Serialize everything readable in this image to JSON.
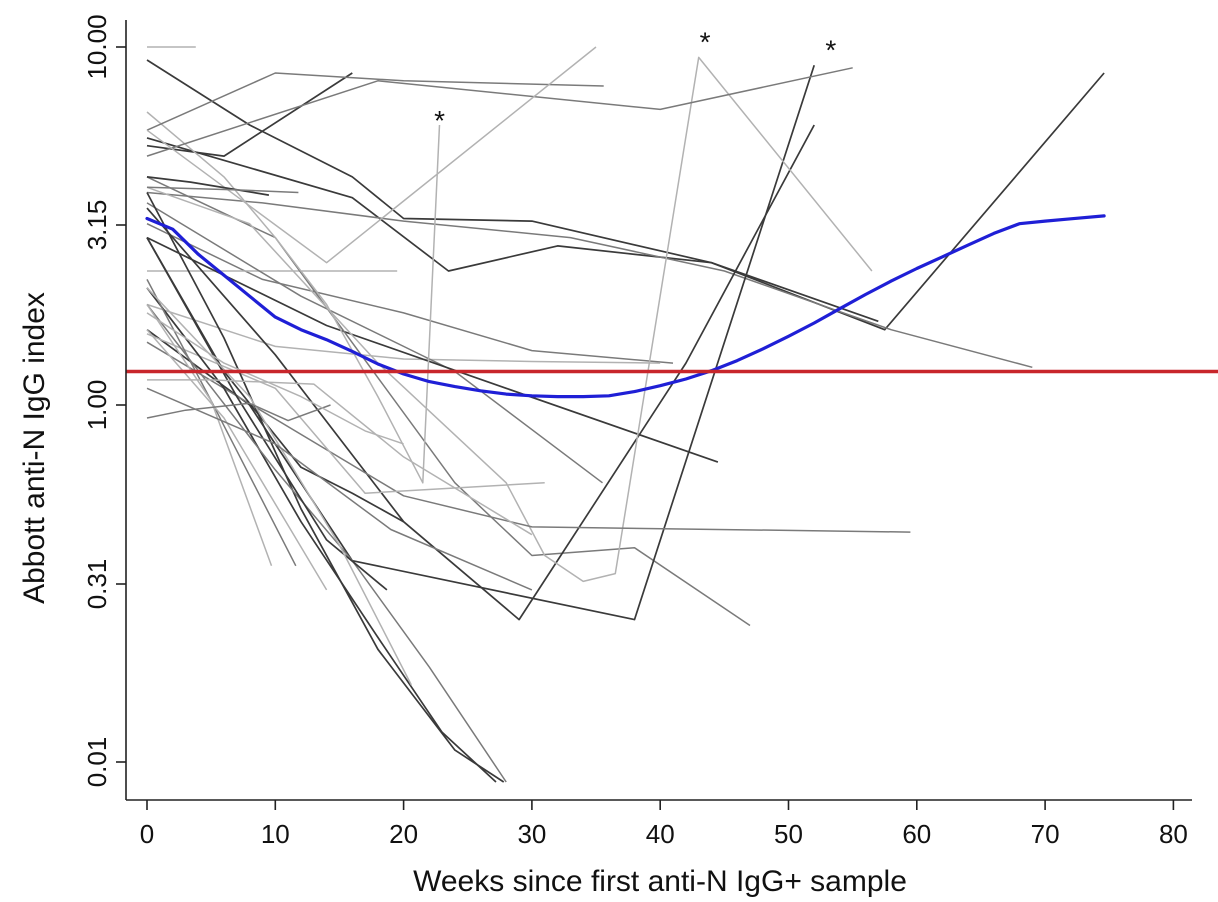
{
  "chart_data": {
    "type": "line",
    "xlabel": "Weeks since first anti-N IgG+ sample",
    "ylabel": "Abbott anti-N IgG index",
    "xlim": [
      -1.5,
      82
    ],
    "y_scale": "log-like (tick positions unevenly spaced)",
    "x_ticks": [
      0,
      10,
      20,
      30,
      40,
      50,
      60,
      70,
      80
    ],
    "x_tick_labels": [
      "0",
      "10",
      "20",
      "30",
      "40",
      "50",
      "60",
      "70",
      "80"
    ],
    "y_ticks": [
      0.01,
      0.31,
      1.0,
      3.15,
      10.0
    ],
    "y_tick_labels": [
      "0.01",
      "0.31",
      "1.00",
      "3.15",
      "10.00"
    ],
    "y_ticks_fraction": [
      0.01,
      0.31,
      1.0,
      3.15,
      10.0
    ],
    "grid": false,
    "legend": "none",
    "colors": {
      "individual_dark": "#3a3a3a",
      "individual_mid": "#7a7a7a",
      "individual_light": "#b2b2b2",
      "smooth_fit": "#1f1fd6",
      "threshold": "#c8262b",
      "axis": "#222222"
    },
    "threshold": {
      "y": 1.4
    },
    "annotations": [
      {
        "text": "*",
        "x": 22.8,
        "y": 7.5
      },
      {
        "text": "*",
        "x": 43.5,
        "y": 11.0
      },
      {
        "text": "*",
        "x": 53.3,
        "y": 10.4
      }
    ],
    "smooth_curve": {
      "x": [
        0,
        2,
        4,
        6,
        8,
        10,
        12,
        14,
        16,
        18,
        20,
        22,
        24,
        26,
        28,
        30,
        32,
        34,
        36,
        38,
        40,
        42,
        44,
        46,
        48,
        50,
        52,
        54,
        56,
        58,
        60,
        62,
        64,
        66,
        68,
        70,
        72,
        74.6
      ],
      "y": [
        3.4,
        3.1,
        2.8,
        2.55,
        2.3,
        2.05,
        1.9,
        1.78,
        1.64,
        1.49,
        1.37,
        1.28,
        1.22,
        1.17,
        1.13,
        1.11,
        1.1,
        1.1,
        1.11,
        1.16,
        1.23,
        1.31,
        1.41,
        1.53,
        1.67,
        1.82,
        1.98,
        2.15,
        2.32,
        2.48,
        2.63,
        2.77,
        2.91,
        3.05,
        3.2,
        3.3,
        3.39,
        3.5
      ]
    },
    "series": [
      {
        "tone": "dark",
        "x": [
          0,
          16,
          23.5,
          32,
          44,
          57.5,
          74.6
        ],
        "y": [
          6.5,
          4.2,
          2.6,
          2.9,
          2.7,
          1.9,
          9.0
        ]
      },
      {
        "tone": "dark",
        "x": [
          0,
          8,
          16,
          20,
          30,
          44,
          57
        ],
        "y": [
          9.5,
          7.0,
          5.0,
          3.4,
          3.3,
          2.7,
          2.0
        ]
      },
      {
        "tone": "dark",
        "x": [
          0,
          6,
          16
        ],
        "y": [
          6.2,
          5.8,
          9.0
        ]
      },
      {
        "tone": "mid",
        "x": [
          0,
          9,
          20,
          30,
          41
        ],
        "y": [
          3.2,
          2.5,
          2.1,
          1.65,
          1.5
        ]
      },
      {
        "tone": "mid",
        "x": [
          0,
          9,
          20,
          33,
          45,
          58,
          69
        ],
        "y": [
          4.4,
          4.0,
          3.3,
          3.0,
          2.6,
          1.9,
          1.45
        ]
      },
      {
        "tone": "light",
        "x": [
          0,
          10,
          20,
          30,
          40
        ],
        "y": [
          2.2,
          1.7,
          1.55,
          1.52,
          1.5
        ]
      },
      {
        "tone": "light",
        "x": [
          0,
          10,
          19.5
        ],
        "y": [
          2.6,
          2.6,
          2.6
        ]
      },
      {
        "tone": "mid",
        "x": [
          0,
          12,
          24,
          35.5
        ],
        "y": [
          4.0,
          2.3,
          1.4,
          0.7
        ]
      },
      {
        "tone": "dark",
        "x": [
          0,
          14,
          28,
          44.5
        ],
        "y": [
          3.0,
          1.95,
          1.2,
          0.78
        ]
      },
      {
        "tone": "mid",
        "x": [
          0,
          10,
          24,
          30,
          38,
          47
        ],
        "y": [
          5.0,
          3.0,
          0.7,
          0.42,
          0.45,
          0.24
        ]
      },
      {
        "tone": "dark",
        "x": [
          0,
          10,
          20,
          29,
          42,
          52
        ],
        "y": [
          3.8,
          1.6,
          0.55,
          0.25,
          1.5,
          7.0
        ]
      },
      {
        "tone": "dark",
        "x": [
          0,
          8,
          16,
          38,
          52
        ],
        "y": [
          1.9,
          1.0,
          0.4,
          0.25,
          9.3
        ]
      },
      {
        "tone": "light",
        "x": [
          0,
          6,
          10,
          14,
          18,
          21.5,
          22.8
        ],
        "y": [
          7.5,
          5.0,
          3.0,
          2.2,
          1.1,
          0.7,
          7.0
        ]
      },
      {
        "tone": "light",
        "x": [
          0,
          8,
          18,
          28,
          31,
          34,
          36.5,
          43,
          56.5
        ],
        "y": [
          4.6,
          3.2,
          1.5,
          0.7,
          0.42,
          0.32,
          0.35,
          9.6,
          2.6
        ]
      },
      {
        "tone": "mid",
        "x": [
          0,
          10,
          20,
          35.6
        ],
        "y": [
          6.8,
          9.0,
          8.7,
          8.5
        ]
      },
      {
        "tone": "mid",
        "x": [
          0,
          18,
          40,
          55
        ],
        "y": [
          5.8,
          8.7,
          7.6,
          9.2
        ]
      },
      {
        "tone": "light",
        "x": [
          0,
          3.8
        ],
        "y": [
          10.0,
          10.0
        ]
      },
      {
        "tone": "light",
        "x": [
          0,
          14,
          35
        ],
        "y": [
          6.8,
          2.7,
          10.0
        ]
      },
      {
        "tone": "mid",
        "x": [
          0,
          20,
          30,
          59.5
        ],
        "y": [
          1.75,
          0.65,
          0.53,
          0.51
        ]
      },
      {
        "tone": "light",
        "x": [
          0,
          10,
          17,
          31
        ],
        "y": [
          1.85,
          1.2,
          0.66,
          0.7
        ]
      },
      {
        "tone": "dark",
        "x": [
          0,
          6,
          12,
          16,
          20
        ],
        "y": [
          3.0,
          1.4,
          0.76,
          0.66,
          0.55
        ]
      },
      {
        "tone": "dark",
        "x": [
          0,
          3.4,
          9.5
        ],
        "y": [
          5.0,
          4.8,
          4.3
        ]
      },
      {
        "tone": "dark",
        "x": [
          0,
          6,
          12,
          18,
          24,
          27.8
        ],
        "y": [
          4.4,
          1.8,
          0.6,
          0.2,
          0.03,
          0.005
        ]
      },
      {
        "tone": "dark",
        "x": [
          0,
          6,
          12,
          18,
          23,
          27.2
        ],
        "y": [
          2.4,
          1.2,
          0.55,
          0.22,
          0.06,
          0.005
        ]
      },
      {
        "tone": "mid",
        "x": [
          0,
          10,
          16,
          22,
          28
        ],
        "y": [
          2.2,
          0.75,
          0.4,
          0.17,
          0.005
        ]
      },
      {
        "tone": "mid",
        "x": [
          0,
          5,
          11.6
        ],
        "y": [
          2.5,
          1.05,
          0.38
        ]
      },
      {
        "tone": "light",
        "x": [
          0,
          6,
          14
        ],
        "y": [
          1.9,
          0.95,
          0.3
        ]
      },
      {
        "tone": "light",
        "x": [
          0,
          5,
          9.7
        ],
        "y": [
          2.2,
          1.05,
          0.38
        ]
      },
      {
        "tone": "dark",
        "x": [
          0,
          7,
          14,
          18.7
        ],
        "y": [
          3.0,
          1.1,
          0.48,
          0.3
        ]
      },
      {
        "tone": "light",
        "x": [
          0,
          8,
          15,
          20.6
        ],
        "y": [
          2.4,
          1.1,
          0.46,
          0.14
        ]
      },
      {
        "tone": "mid",
        "x": [
          0,
          10,
          19,
          30
        ],
        "y": [
          1.2,
          0.85,
          0.52,
          0.3
        ]
      },
      {
        "tone": "light",
        "x": [
          0,
          5,
          13,
          20,
          30
        ],
        "y": [
          1.3,
          1.3,
          1.25,
          0.8,
          0.5
        ]
      },
      {
        "tone": "mid",
        "x": [
          0,
          3,
          8,
          11,
          14.3
        ],
        "y": [
          0.95,
          0.98,
          1.02,
          0.94,
          1.0
        ]
      },
      {
        "tone": "light",
        "x": [
          0,
          6,
          12,
          17,
          20
        ],
        "y": [
          2.1,
          1.5,
          1.1,
          0.9,
          0.85
        ]
      },
      {
        "tone": "mid",
        "x": [
          0,
          7,
          11.8
        ],
        "y": [
          4.6,
          4.5,
          4.4
        ]
      }
    ]
  }
}
